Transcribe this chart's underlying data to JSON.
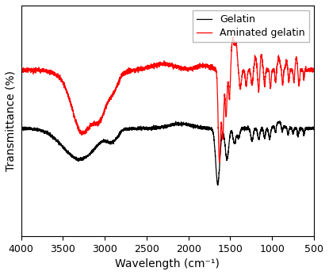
{
  "xlabel": "Wavelength (cm⁻¹)",
  "ylabel": "Transmittance (%)",
  "xlim": [
    4000,
    500
  ],
  "legend_labels": [
    "Gelatin",
    "Aminated gelatin"
  ],
  "line_colors": [
    "black",
    "red"
  ],
  "x_ticks": [
    4000,
    3500,
    3000,
    2500,
    2000,
    1500,
    1000,
    500
  ],
  "figsize": [
    4.15,
    3.47
  ],
  "dpi": 100
}
